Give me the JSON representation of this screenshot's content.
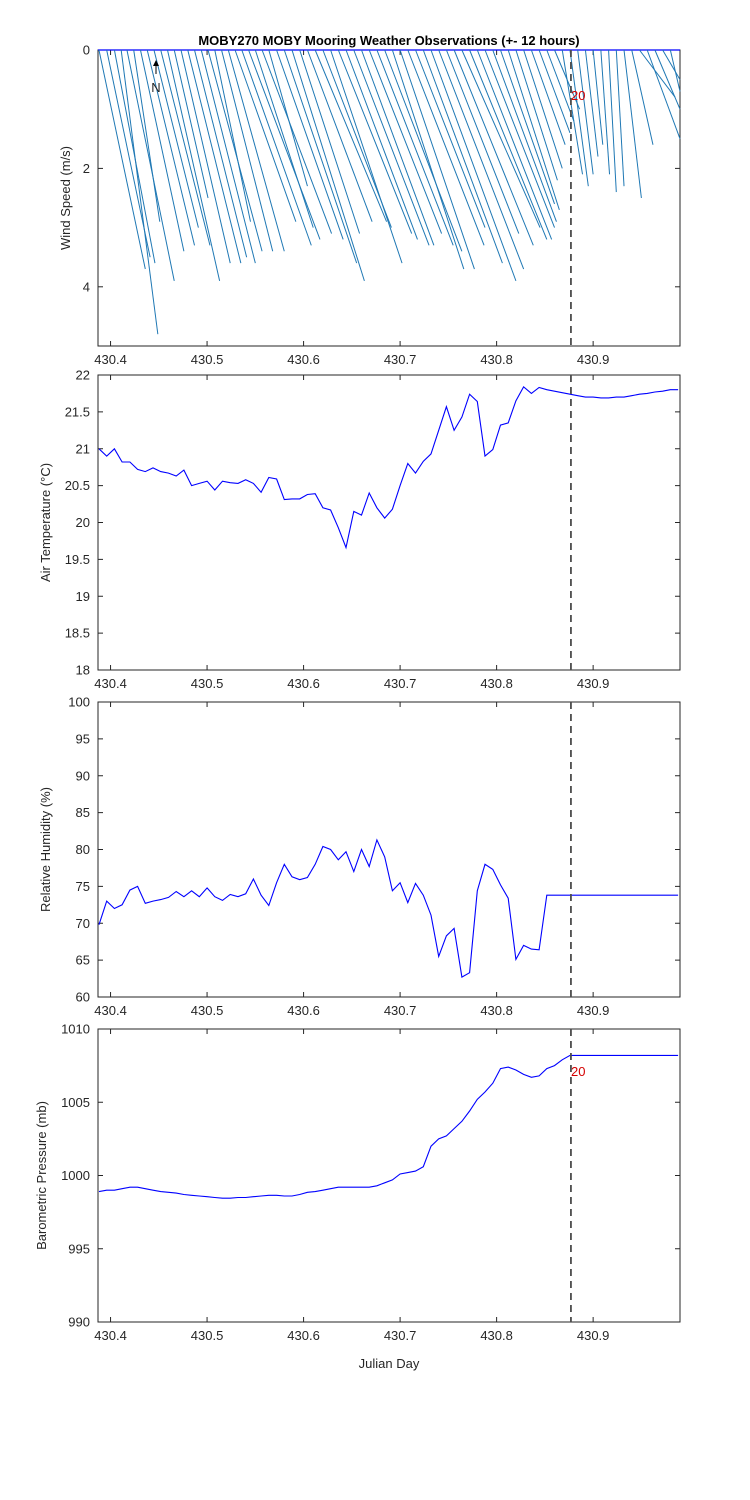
{
  "title": "MOBY270 MOBY Mooring Weather Observations (+- 12 hours)",
  "xlabel": "Julian Day",
  "marker": {
    "x": 430.877,
    "label": "20"
  },
  "north_label": "N",
  "colors": {
    "wind": "#1f78b4",
    "line": "#0000ff",
    "axis": "#262626",
    "marker": "#4d4d4d",
    "annotation": "#d40000"
  },
  "chart_data": [
    {
      "type": "line",
      "variant": "wind-vectors",
      "ylabel": "Wind Speed (m/s)",
      "xlim": [
        430.387,
        430.99
      ],
      "ylim": [
        0,
        5
      ],
      "yreversed": true,
      "xticks": [
        "430.4",
        "430.5",
        "430.6",
        "430.7",
        "430.8",
        "430.9"
      ],
      "yticks": [
        "0",
        "2",
        "4"
      ],
      "vectors": [
        [
          430.388,
          430.436,
          3.7
        ],
        [
          430.396,
          430.441,
          3.5
        ],
        [
          430.404,
          430.446,
          3.6
        ],
        [
          430.411,
          430.449,
          4.8
        ],
        [
          430.417,
          430.466,
          3.9
        ],
        [
          430.424,
          430.451,
          2.9
        ],
        [
          430.431,
          430.476,
          3.4
        ],
        [
          430.438,
          430.487,
          3.3
        ],
        [
          430.445,
          430.491,
          3.0
        ],
        [
          430.452,
          430.503,
          3.3
        ],
        [
          430.459,
          430.513,
          3.9
        ],
        [
          430.466,
          430.501,
          2.5
        ],
        [
          430.473,
          430.524,
          3.6
        ],
        [
          430.48,
          430.535,
          3.6
        ],
        [
          430.487,
          430.541,
          3.5
        ],
        [
          430.494,
          430.55,
          3.6
        ],
        [
          430.501,
          430.557,
          3.4
        ],
        [
          430.508,
          430.545,
          2.9
        ],
        [
          430.515,
          430.568,
          3.4
        ],
        [
          430.522,
          430.58,
          3.4
        ],
        [
          430.529,
          430.592,
          2.9
        ],
        [
          430.536,
          430.608,
          3.3
        ],
        [
          430.543,
          430.617,
          3.2
        ],
        [
          430.55,
          430.61,
          3.0
        ],
        [
          430.557,
          430.629,
          3.1
        ],
        [
          430.564,
          430.604,
          2.3
        ],
        [
          430.572,
          430.641,
          3.2
        ],
        [
          430.58,
          430.655,
          3.6
        ],
        [
          430.588,
          430.663,
          3.9
        ],
        [
          430.596,
          430.658,
          3.1
        ],
        [
          430.604,
          430.671,
          2.9
        ],
        [
          430.612,
          430.686,
          2.9
        ],
        [
          430.62,
          430.691,
          3.0
        ],
        [
          430.628,
          430.702,
          3.6
        ],
        [
          430.636,
          430.712,
          3.1
        ],
        [
          430.644,
          430.718,
          3.2
        ],
        [
          430.652,
          430.73,
          3.3
        ],
        [
          430.66,
          430.735,
          3.3
        ],
        [
          430.668,
          430.743,
          3.1
        ],
        [
          430.676,
          430.755,
          3.3
        ],
        [
          430.684,
          430.764,
          3.4
        ],
        [
          430.692,
          430.766,
          3.7
        ],
        [
          430.7,
          430.777,
          3.7
        ],
        [
          430.708,
          430.787,
          3.3
        ],
        [
          430.716,
          430.788,
          3.0
        ],
        [
          430.724,
          430.806,
          3.6
        ],
        [
          430.732,
          430.82,
          3.9
        ],
        [
          430.74,
          430.828,
          3.7
        ],
        [
          430.748,
          430.823,
          3.1
        ],
        [
          430.756,
          430.838,
          3.3
        ],
        [
          430.764,
          430.845,
          3.0
        ],
        [
          430.772,
          430.852,
          3.2
        ],
        [
          430.78,
          430.857,
          3.2
        ],
        [
          430.788,
          430.86,
          3.0
        ],
        [
          430.796,
          430.862,
          2.9
        ],
        [
          430.804,
          430.86,
          2.6
        ],
        [
          430.812,
          430.865,
          2.7
        ],
        [
          430.82,
          430.863,
          2.2
        ],
        [
          430.828,
          430.868,
          2.0
        ],
        [
          430.836,
          430.871,
          1.6
        ],
        [
          430.844,
          430.876,
          1.4
        ],
        [
          430.852,
          430.88,
          1.2
        ],
        [
          430.86,
          430.886,
          1.0
        ],
        [
          430.868,
          430.889,
          2.1
        ],
        [
          430.876,
          430.895,
          2.3
        ],
        [
          430.884,
          430.9,
          2.1
        ],
        [
          430.892,
          430.905,
          1.8
        ],
        [
          430.9,
          430.91,
          1.6
        ],
        [
          430.908,
          430.917,
          2.1
        ],
        [
          430.916,
          430.924,
          2.4
        ],
        [
          430.924,
          430.932,
          2.3
        ],
        [
          430.932,
          430.95,
          2.5
        ],
        [
          430.94,
          430.962,
          1.6
        ],
        [
          430.948,
          430.985,
          0.8
        ],
        [
          430.956,
          430.99,
          1.5
        ],
        [
          430.964,
          430.99,
          1.0
        ],
        [
          430.972,
          430.99,
          0.5
        ],
        [
          430.98,
          430.99,
          0.7
        ]
      ]
    },
    {
      "type": "line",
      "ylabel": "Air Temperature (°C)",
      "xlim": [
        430.387,
        430.99
      ],
      "ylim": [
        18,
        22
      ],
      "xticks": [
        "430.4",
        "430.5",
        "430.6",
        "430.7",
        "430.8",
        "430.9"
      ],
      "yticks": [
        "18",
        "18.5",
        "19",
        "19.5",
        "20",
        "20.5",
        "21",
        "21.5",
        "22"
      ],
      "x": [
        430.388,
        430.396,
        430.404,
        430.412,
        430.42,
        430.428,
        430.436,
        430.444,
        430.452,
        430.46,
        430.468,
        430.476,
        430.484,
        430.492,
        430.5,
        430.508,
        430.516,
        430.524,
        430.532,
        430.54,
        430.548,
        430.556,
        430.564,
        430.572,
        430.58,
        430.588,
        430.596,
        430.604,
        430.612,
        430.62,
        430.628,
        430.636,
        430.644,
        430.652,
        430.66,
        430.668,
        430.676,
        430.684,
        430.692,
        430.7,
        430.708,
        430.716,
        430.724,
        430.732,
        430.74,
        430.748,
        430.756,
        430.764,
        430.772,
        430.78,
        430.788,
        430.796,
        430.804,
        430.812,
        430.82,
        430.828,
        430.836,
        430.844,
        430.852,
        430.86,
        430.868,
        430.876,
        430.884,
        430.892,
        430.9,
        430.908,
        430.916,
        430.924,
        430.932,
        430.94,
        430.948,
        430.956,
        430.964,
        430.972,
        430.98,
        430.988
      ],
      "values": [
        21.0,
        20.9,
        21.0,
        20.82,
        20.82,
        20.72,
        20.69,
        20.74,
        20.69,
        20.67,
        20.63,
        20.71,
        20.5,
        20.53,
        20.56,
        20.44,
        20.56,
        20.54,
        20.53,
        20.58,
        20.53,
        20.41,
        20.61,
        20.59,
        20.31,
        20.32,
        20.32,
        20.38,
        20.39,
        20.2,
        20.17,
        19.93,
        19.66,
        20.15,
        20.1,
        20.4,
        20.2,
        20.06,
        20.18,
        20.5,
        20.8,
        20.67,
        20.83,
        20.93,
        21.25,
        21.57,
        21.25,
        21.43,
        21.74,
        21.64,
        20.9,
        20.99,
        21.32,
        21.35,
        21.65,
        21.84,
        21.75,
        21.83,
        21.8,
        21.78,
        21.76,
        21.74,
        21.72,
        21.7,
        21.7,
        21.69,
        21.69,
        21.7,
        21.7,
        21.72,
        21.74,
        21.75,
        21.77,
        21.78,
        21.8,
        21.8
      ]
    },
    {
      "type": "line",
      "ylabel": "Relative Humidity (%)",
      "xlim": [
        430.387,
        430.99
      ],
      "ylim": [
        60,
        100
      ],
      "xticks": [
        "430.4",
        "430.5",
        "430.6",
        "430.7",
        "430.8",
        "430.9"
      ],
      "yticks": [
        "60",
        "65",
        "70",
        "75",
        "80",
        "85",
        "90",
        "95",
        "100"
      ],
      "x": [
        430.388,
        430.396,
        430.404,
        430.412,
        430.42,
        430.428,
        430.436,
        430.444,
        430.452,
        430.46,
        430.468,
        430.476,
        430.484,
        430.492,
        430.5,
        430.508,
        430.516,
        430.524,
        430.532,
        430.54,
        430.548,
        430.556,
        430.564,
        430.572,
        430.58,
        430.588,
        430.596,
        430.604,
        430.612,
        430.62,
        430.628,
        430.636,
        430.644,
        430.652,
        430.66,
        430.668,
        430.676,
        430.684,
        430.692,
        430.7,
        430.708,
        430.716,
        430.724,
        430.732,
        430.74,
        430.748,
        430.756,
        430.764,
        430.772,
        430.78,
        430.788,
        430.796,
        430.804,
        430.812,
        430.82,
        430.828,
        430.836,
        430.844,
        430.852,
        430.86,
        430.868,
        430.876,
        430.884,
        430.892,
        430.9,
        430.908,
        430.916,
        430.924,
        430.932,
        430.94,
        430.948,
        430.956,
        430.964,
        430.972,
        430.98,
        430.988
      ],
      "values": [
        69.8,
        73.0,
        72.0,
        72.5,
        74.5,
        75.0,
        72.7,
        73.0,
        73.2,
        73.5,
        74.3,
        73.6,
        74.4,
        73.6,
        74.8,
        73.6,
        73.1,
        73.9,
        73.6,
        74.0,
        76.0,
        73.8,
        72.4,
        75.5,
        78.0,
        76.3,
        75.9,
        76.2,
        78.0,
        80.4,
        80.0,
        78.6,
        79.7,
        77.0,
        80.0,
        77.7,
        81.3,
        79.0,
        74.4,
        75.5,
        72.8,
        75.4,
        73.8,
        71.1,
        65.5,
        68.3,
        69.3,
        62.7,
        63.3,
        74.4,
        78.0,
        77.3,
        75.2,
        73.4,
        65.1,
        67.0,
        66.5,
        66.4,
        73.8,
        73.8,
        73.8,
        73.8,
        73.8,
        73.8,
        73.8,
        73.8,
        73.8,
        73.8,
        73.8,
        73.8,
        73.8,
        73.8,
        73.8,
        73.8,
        73.8,
        73.8
      ]
    },
    {
      "type": "line",
      "ylabel": "Barometric Pressure (mb)",
      "xlim": [
        430.387,
        430.99
      ],
      "ylim": [
        990,
        1010
      ],
      "xticks": [
        "430.4",
        "430.5",
        "430.6",
        "430.7",
        "430.8",
        "430.9"
      ],
      "yticks": [
        "990",
        "995",
        "1000",
        "1005",
        "1010"
      ],
      "x": [
        430.388,
        430.396,
        430.404,
        430.412,
        430.42,
        430.428,
        430.436,
        430.444,
        430.452,
        430.46,
        430.468,
        430.476,
        430.484,
        430.492,
        430.5,
        430.508,
        430.516,
        430.524,
        430.532,
        430.54,
        430.548,
        430.556,
        430.564,
        430.572,
        430.58,
        430.588,
        430.596,
        430.604,
        430.612,
        430.62,
        430.628,
        430.636,
        430.644,
        430.652,
        430.66,
        430.668,
        430.676,
        430.684,
        430.692,
        430.7,
        430.708,
        430.716,
        430.724,
        430.732,
        430.74,
        430.748,
        430.756,
        430.764,
        430.772,
        430.78,
        430.788,
        430.796,
        430.804,
        430.812,
        430.82,
        430.828,
        430.836,
        430.844,
        430.852,
        430.86,
        430.868,
        430.876,
        430.884,
        430.892,
        430.9,
        430.908,
        430.916,
        430.924,
        430.932,
        430.94,
        430.948,
        430.956,
        430.964,
        430.972,
        430.98,
        430.988
      ],
      "values": [
        998.9,
        999.0,
        999.0,
        999.1,
        999.2,
        999.2,
        999.1,
        999.0,
        998.9,
        998.85,
        998.8,
        998.7,
        998.65,
        998.6,
        998.55,
        998.5,
        998.45,
        998.45,
        998.5,
        998.5,
        998.55,
        998.6,
        998.65,
        998.65,
        998.6,
        998.6,
        998.7,
        998.85,
        998.9,
        999.0,
        999.1,
        999.2,
        999.2,
        999.2,
        999.2,
        999.2,
        999.3,
        999.5,
        999.7,
        1000.1,
        1000.2,
        1000.3,
        1000.6,
        1002.0,
        1002.5,
        1002.7,
        1003.2,
        1003.7,
        1004.4,
        1005.2,
        1005.7,
        1006.3,
        1007.3,
        1007.4,
        1007.2,
        1006.9,
        1006.7,
        1006.8,
        1007.3,
        1007.5,
        1007.9,
        1008.2,
        1008.2,
        1008.2,
        1008.2,
        1008.2,
        1008.2,
        1008.2,
        1008.2,
        1008.2,
        1008.2,
        1008.2,
        1008.2,
        1008.2,
        1008.2,
        1008.2
      ]
    }
  ]
}
